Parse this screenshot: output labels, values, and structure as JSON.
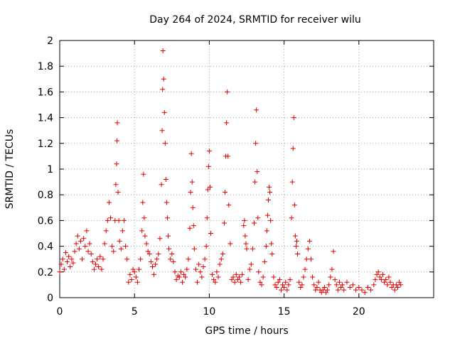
{
  "chart_data": {
    "type": "scatter",
    "title": "Day 264 of 2024, SRMTID for receiver wilu",
    "xlabel": "GPS time / hours",
    "ylabel": "SRMTID / TECUs",
    "xlim": [
      0,
      25
    ],
    "ylim": [
      0,
      2
    ],
    "xticks": [
      0,
      5,
      10,
      15,
      20
    ],
    "yticks": [
      0,
      0.2,
      0.4,
      0.6,
      0.8,
      1,
      1.2,
      1.4,
      1.6,
      1.8,
      2
    ],
    "grid": true,
    "marker": "+",
    "color": "#e00000",
    "series": [
      {
        "name": "SRMTID",
        "points": [
          [
            0.0,
            0.2
          ],
          [
            0.1,
            0.26
          ],
          [
            0.2,
            0.3
          ],
          [
            0.3,
            0.22
          ],
          [
            0.4,
            0.35
          ],
          [
            0.5,
            0.28
          ],
          [
            0.6,
            0.32
          ],
          [
            0.7,
            0.24
          ],
          [
            0.8,
            0.3
          ],
          [
            0.9,
            0.27
          ],
          [
            1.0,
            0.36
          ],
          [
            1.1,
            0.42
          ],
          [
            1.2,
            0.48
          ],
          [
            1.3,
            0.38
          ],
          [
            1.4,
            0.44
          ],
          [
            1.5,
            0.3
          ],
          [
            1.6,
            0.46
          ],
          [
            1.7,
            0.4
          ],
          [
            1.8,
            0.52
          ],
          [
            1.9,
            0.36
          ],
          [
            2.0,
            0.42
          ],
          [
            2.1,
            0.34
          ],
          [
            2.2,
            0.28
          ],
          [
            2.3,
            0.22
          ],
          [
            2.4,
            0.26
          ],
          [
            2.5,
            0.3
          ],
          [
            2.6,
            0.24
          ],
          [
            2.7,
            0.32
          ],
          [
            2.8,
            0.22
          ],
          [
            2.9,
            0.3
          ],
          [
            3.0,
            0.42
          ],
          [
            3.1,
            0.52
          ],
          [
            3.2,
            0.6
          ],
          [
            3.3,
            0.74
          ],
          [
            3.4,
            0.62
          ],
          [
            3.5,
            0.4
          ],
          [
            3.6,
            0.36
          ],
          [
            3.7,
            0.6
          ],
          [
            3.75,
            0.88
          ],
          [
            3.8,
            1.04
          ],
          [
            3.83,
            1.22
          ],
          [
            3.85,
            1.36
          ],
          [
            3.9,
            0.82
          ],
          [
            3.95,
            0.6
          ],
          [
            4.0,
            0.44
          ],
          [
            4.1,
            0.38
          ],
          [
            4.2,
            0.52
          ],
          [
            4.3,
            0.6
          ],
          [
            4.4,
            0.4
          ],
          [
            4.5,
            0.3
          ],
          [
            4.6,
            0.12
          ],
          [
            4.7,
            0.18
          ],
          [
            4.8,
            0.14
          ],
          [
            4.9,
            0.22
          ],
          [
            5.0,
            0.2
          ],
          [
            5.1,
            0.16
          ],
          [
            5.2,
            0.12
          ],
          [
            5.3,
            0.22
          ],
          [
            5.4,
            0.3
          ],
          [
            5.5,
            0.52
          ],
          [
            5.55,
            0.74
          ],
          [
            5.6,
            0.96
          ],
          [
            5.65,
            0.62
          ],
          [
            5.7,
            0.48
          ],
          [
            5.8,
            0.42
          ],
          [
            5.9,
            0.36
          ],
          [
            6.0,
            0.34
          ],
          [
            6.1,
            0.28
          ],
          [
            6.2,
            0.24
          ],
          [
            6.3,
            0.18
          ],
          [
            6.4,
            0.26
          ],
          [
            6.5,
            0.3
          ],
          [
            6.6,
            0.34
          ],
          [
            6.7,
            0.46
          ],
          [
            6.8,
            0.88
          ],
          [
            6.85,
            1.3
          ],
          [
            6.88,
            1.62
          ],
          [
            6.9,
            1.92
          ],
          [
            6.95,
            1.7
          ],
          [
            7.0,
            1.44
          ],
          [
            7.05,
            1.2
          ],
          [
            7.1,
            0.92
          ],
          [
            7.15,
            0.74
          ],
          [
            7.2,
            0.62
          ],
          [
            7.25,
            0.48
          ],
          [
            7.3,
            0.38
          ],
          [
            7.4,
            0.3
          ],
          [
            7.5,
            0.34
          ],
          [
            7.6,
            0.28
          ],
          [
            7.7,
            0.2
          ],
          [
            7.8,
            0.14
          ],
          [
            7.9,
            0.17
          ],
          [
            8.0,
            0.16
          ],
          [
            8.1,
            0.2
          ],
          [
            8.2,
            0.12
          ],
          [
            8.3,
            0.18
          ],
          [
            8.4,
            0.16
          ],
          [
            8.5,
            0.22
          ],
          [
            8.6,
            0.3
          ],
          [
            8.7,
            0.54
          ],
          [
            8.75,
            0.82
          ],
          [
            8.8,
            1.12
          ],
          [
            8.85,
            0.9
          ],
          [
            8.9,
            0.7
          ],
          [
            8.95,
            0.56
          ],
          [
            9.0,
            0.38
          ],
          [
            9.1,
            0.22
          ],
          [
            9.2,
            0.12
          ],
          [
            9.3,
            0.26
          ],
          [
            9.4,
            0.2
          ],
          [
            9.5,
            0.16
          ],
          [
            9.6,
            0.24
          ],
          [
            9.7,
            0.3
          ],
          [
            9.8,
            0.4
          ],
          [
            9.85,
            0.62
          ],
          [
            9.9,
            0.84
          ],
          [
            9.95,
            1.02
          ],
          [
            10.0,
            1.14
          ],
          [
            10.05,
            0.86
          ],
          [
            10.1,
            0.5
          ],
          [
            10.2,
            0.18
          ],
          [
            10.3,
            0.14
          ],
          [
            10.4,
            0.12
          ],
          [
            10.5,
            0.2
          ],
          [
            10.6,
            0.16
          ],
          [
            10.7,
            0.26
          ],
          [
            10.8,
            0.3
          ],
          [
            10.9,
            0.34
          ],
          [
            11.0,
            0.58
          ],
          [
            11.05,
            0.82
          ],
          [
            11.1,
            1.1
          ],
          [
            11.15,
            1.36
          ],
          [
            11.2,
            1.6
          ],
          [
            11.25,
            1.1
          ],
          [
            11.3,
            0.72
          ],
          [
            11.4,
            0.42
          ],
          [
            11.5,
            0.14
          ],
          [
            11.6,
            0.16
          ],
          [
            11.7,
            0.12
          ],
          [
            11.8,
            0.18
          ],
          [
            11.9,
            0.14
          ],
          [
            12.0,
            0.16
          ],
          [
            12.1,
            0.12
          ],
          [
            12.2,
            0.18
          ],
          [
            12.3,
            0.56
          ],
          [
            12.35,
            0.6
          ],
          [
            12.4,
            0.48
          ],
          [
            12.45,
            0.42
          ],
          [
            12.5,
            0.38
          ],
          [
            12.6,
            0.14
          ],
          [
            12.7,
            0.22
          ],
          [
            12.8,
            0.26
          ],
          [
            12.9,
            0.38
          ],
          [
            13.0,
            0.58
          ],
          [
            13.05,
            0.9
          ],
          [
            13.1,
            1.2
          ],
          [
            13.15,
            1.46
          ],
          [
            13.2,
            0.98
          ],
          [
            13.25,
            0.62
          ],
          [
            13.3,
            0.2
          ],
          [
            13.4,
            0.12
          ],
          [
            13.5,
            0.1
          ],
          [
            13.6,
            0.16
          ],
          [
            13.7,
            0.28
          ],
          [
            13.8,
            0.4
          ],
          [
            13.85,
            0.52
          ],
          [
            13.9,
            0.64
          ],
          [
            13.95,
            0.76
          ],
          [
            14.0,
            0.86
          ],
          [
            14.05,
            0.82
          ],
          [
            14.1,
            0.6
          ],
          [
            14.15,
            0.42
          ],
          [
            14.2,
            0.34
          ],
          [
            14.3,
            0.16
          ],
          [
            14.4,
            0.1
          ],
          [
            14.5,
            0.08
          ],
          [
            14.6,
            0.12
          ],
          [
            14.7,
            0.14
          ],
          [
            14.8,
            0.06
          ],
          [
            14.9,
            0.1
          ],
          [
            15.0,
            0.08
          ],
          [
            15.1,
            0.12
          ],
          [
            15.2,
            0.06
          ],
          [
            15.3,
            0.1
          ],
          [
            15.4,
            0.14
          ],
          [
            15.5,
            0.62
          ],
          [
            15.55,
            0.9
          ],
          [
            15.6,
            1.16
          ],
          [
            15.65,
            1.4
          ],
          [
            15.7,
            0.72
          ],
          [
            15.75,
            0.48
          ],
          [
            15.8,
            0.4
          ],
          [
            15.85,
            0.44
          ],
          [
            15.9,
            0.34
          ],
          [
            16.0,
            0.12
          ],
          [
            16.1,
            0.08
          ],
          [
            16.2,
            0.1
          ],
          [
            16.3,
            0.16
          ],
          [
            16.4,
            0.22
          ],
          [
            16.5,
            0.3
          ],
          [
            16.6,
            0.38
          ],
          [
            16.7,
            0.44
          ],
          [
            16.8,
            0.3
          ],
          [
            16.9,
            0.16
          ],
          [
            17.0,
            0.1
          ],
          [
            17.1,
            0.06
          ],
          [
            17.2,
            0.08
          ],
          [
            17.3,
            0.12
          ],
          [
            17.4,
            0.06
          ],
          [
            17.5,
            0.04
          ],
          [
            17.6,
            0.06
          ],
          [
            17.7,
            0.08
          ],
          [
            17.8,
            0.04
          ],
          [
            17.9,
            0.06
          ],
          [
            18.0,
            0.1
          ],
          [
            18.1,
            0.16
          ],
          [
            18.2,
            0.22
          ],
          [
            18.3,
            0.36
          ],
          [
            18.4,
            0.14
          ],
          [
            18.5,
            0.1
          ],
          [
            18.6,
            0.06
          ],
          [
            18.7,
            0.12
          ],
          [
            18.8,
            0.08
          ],
          [
            18.9,
            0.1
          ],
          [
            19.0,
            0.06
          ],
          [
            19.2,
            0.12
          ],
          [
            19.4,
            0.08
          ],
          [
            19.6,
            0.1
          ],
          [
            19.8,
            0.06
          ],
          [
            20.0,
            0.08
          ],
          [
            20.2,
            0.06
          ],
          [
            20.4,
            0.04
          ],
          [
            20.6,
            0.08
          ],
          [
            20.8,
            0.06
          ],
          [
            21.0,
            0.1
          ],
          [
            21.1,
            0.14
          ],
          [
            21.2,
            0.18
          ],
          [
            21.3,
            0.2
          ],
          [
            21.4,
            0.16
          ],
          [
            21.5,
            0.14
          ],
          [
            21.6,
            0.18
          ],
          [
            21.7,
            0.12
          ],
          [
            21.8,
            0.14
          ],
          [
            21.9,
            0.1
          ],
          [
            22.0,
            0.16
          ],
          [
            22.1,
            0.12
          ],
          [
            22.2,
            0.08
          ],
          [
            22.3,
            0.1
          ],
          [
            22.4,
            0.06
          ],
          [
            22.5,
            0.1
          ],
          [
            22.6,
            0.08
          ],
          [
            22.7,
            0.12
          ],
          [
            22.8,
            0.1
          ]
        ]
      }
    ]
  }
}
